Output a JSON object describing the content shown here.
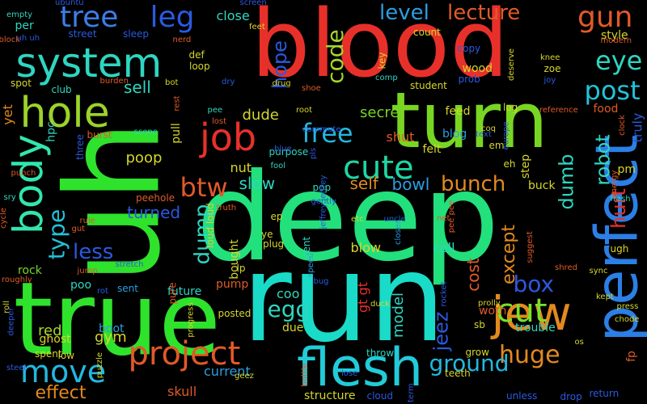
{
  "background": "#000000",
  "words": [
    {
      "text": "blood",
      "color": "#e8302a",
      "rotated": false
    },
    {
      "text": "deep",
      "color": "#22e07c",
      "rotated": false
    },
    {
      "text": "run",
      "color": "#19dbc8",
      "rotated": false
    },
    {
      "text": "uh",
      "color": "#2fe22c",
      "rotated": true
    },
    {
      "text": "true",
      "color": "#2fe22c",
      "rotated": false
    },
    {
      "text": "turn",
      "color": "#78d623",
      "rotated": false
    },
    {
      "text": "flesh",
      "color": "#22cbd8",
      "rotated": false
    },
    {
      "text": "perfect",
      "color": "#2b7fe6",
      "rotated": true
    },
    {
      "text": "system",
      "color": "#2ed6c0",
      "rotated": false
    },
    {
      "text": "hole",
      "color": "#9bd32b",
      "rotated": false
    },
    {
      "text": "body",
      "color": "#32e6ad",
      "rotated": true
    },
    {
      "text": "jew",
      "color": "#e3891f",
      "rotated": false
    },
    {
      "text": "project",
      "color": "#e05a28",
      "rotated": false
    },
    {
      "text": "tree",
      "color": "#3a7ee8",
      "rotated": false
    },
    {
      "text": "job",
      "color": "#e8302a",
      "rotated": false
    },
    {
      "text": "cute",
      "color": "#1fd6a5",
      "rotated": false
    },
    {
      "text": "cut",
      "color": "#78e02a",
      "rotated": false
    },
    {
      "text": "free",
      "color": "#22b8e0",
      "rotated": false
    },
    {
      "text": "leg",
      "color": "#2b59e0",
      "rotated": false
    },
    {
      "text": "gun",
      "color": "#e05a28",
      "rotated": false
    },
    {
      "text": "eye",
      "color": "#2ed6c0",
      "rotated": false
    },
    {
      "text": "post",
      "color": "#22c3d8",
      "rotated": false
    },
    {
      "text": "code",
      "color": "#a5d62b",
      "rotated": true
    },
    {
      "text": "lecture",
      "color": "#e05a28",
      "rotated": false
    },
    {
      "text": "level",
      "color": "#2b9ee0",
      "rotated": false
    },
    {
      "text": "move",
      "color": "#22b8e0",
      "rotated": false
    },
    {
      "text": "huge",
      "color": "#e3891f",
      "rotated": false
    },
    {
      "text": "btw",
      "color": "#e05a28",
      "rotated": false
    },
    {
      "text": "type",
      "color": "#22c3d8",
      "rotated": true
    },
    {
      "text": "ground",
      "color": "#22b8e0",
      "rotated": false
    },
    {
      "text": "box",
      "color": "#2b59e0",
      "rotated": false
    },
    {
      "text": "egg",
      "color": "#2ed6c0",
      "rotated": false
    },
    {
      "text": "bunch",
      "color": "#e3891f",
      "rotated": false
    },
    {
      "text": "jeez",
      "color": "#2b59e0",
      "rotated": true
    },
    {
      "text": "dumb",
      "color": "#2ed6c0",
      "rotated": true
    },
    {
      "text": "robot",
      "color": "#2ed6c0",
      "rotated": true
    },
    {
      "text": "hurt",
      "color": "#e8302a",
      "rotated": true
    },
    {
      "text": "hope",
      "color": "#2b59e0",
      "rotated": true
    },
    {
      "text": "less",
      "color": "#2b59e0",
      "rotated": false
    },
    {
      "text": "dump",
      "color": "#2ed6c0",
      "rotated": true
    },
    {
      "text": "effect",
      "color": "#e3891f",
      "rotated": false
    },
    {
      "text": "skull",
      "color": "#e05a28",
      "rotated": false
    },
    {
      "text": "turned",
      "color": "#2b59e0",
      "rotated": false
    },
    {
      "text": "secret",
      "color": "#78d623",
      "rotated": false
    },
    {
      "text": "dude",
      "color": "#d6d62b",
      "rotated": false
    },
    {
      "text": "slow",
      "color": "#2ed6c0",
      "rotated": false
    },
    {
      "text": "self",
      "color": "#e3891f",
      "rotated": false
    },
    {
      "text": "bowl",
      "color": "#2b9ee0",
      "rotated": false
    },
    {
      "text": "gym",
      "color": "#d6d62b",
      "rotated": false
    },
    {
      "text": "red",
      "color": "#a5d62b",
      "rotated": false
    },
    {
      "text": "nut",
      "color": "#d6d62b",
      "rotated": false
    },
    {
      "text": "coo",
      "color": "#2ed6c0",
      "rotated": false
    },
    {
      "text": "sell",
      "color": "#2ed6c0",
      "rotated": false
    },
    {
      "text": "poop",
      "color": "#d6d62b",
      "rotated": false
    },
    {
      "text": "except",
      "color": "#e3891f",
      "rotated": true
    },
    {
      "text": "cost",
      "color": "#e05a28",
      "rotated": true
    },
    {
      "text": "model",
      "color": "#2ed6c0",
      "rotated": true
    },
    {
      "text": "blow",
      "color": "#d6d62b",
      "rotated": false
    },
    {
      "text": "cell",
      "color": "#2ed6c0",
      "rotated": false
    },
    {
      "text": "close",
      "color": "#2ed6c0",
      "rotated": false
    },
    {
      "text": "per",
      "color": "#2ed6c0",
      "rotated": false
    },
    {
      "text": "empty",
      "color": "#2ed6c0",
      "rotated": false
    },
    {
      "text": "street",
      "color": "#2b59e0",
      "rotated": false
    },
    {
      "text": "block",
      "color": "#e05a28",
      "rotated": false
    },
    {
      "text": "sleep",
      "color": "#2b59e0",
      "rotated": false
    },
    {
      "text": "club",
      "color": "#2ed6c0",
      "rotated": false
    },
    {
      "text": "spot",
      "color": "#d6d62b",
      "rotated": false
    },
    {
      "text": "burden",
      "color": "#e05a28",
      "rotated": false
    },
    {
      "text": "yet",
      "color": "#e3891f",
      "rotated": true
    },
    {
      "text": "hpc",
      "color": "#2ed6c0",
      "rotated": true
    },
    {
      "text": "three",
      "color": "#2b59e0",
      "rotated": true
    },
    {
      "text": "punch",
      "color": "#e05a28",
      "rotated": false
    },
    {
      "text": "sry",
      "color": "#2ed6c0",
      "rotated": false
    },
    {
      "text": "rock",
      "color": "#78d623",
      "rotated": false
    },
    {
      "text": "poo",
      "color": "#2ed6c0",
      "rotated": false
    },
    {
      "text": "sent",
      "color": "#2b9ee0",
      "rotated": false
    },
    {
      "text": "future",
      "color": "#2ed6c0",
      "rotated": false
    },
    {
      "text": "pump",
      "color": "#e05a28",
      "rotated": false
    },
    {
      "text": "posted",
      "color": "#d6d62b",
      "rotated": false
    },
    {
      "text": "current",
      "color": "#2b9ee0",
      "rotated": false
    },
    {
      "text": "structure",
      "color": "#d6d62b",
      "rotated": false
    },
    {
      "text": "cloud",
      "color": "#2b59e0",
      "rotated": false
    },
    {
      "text": "unless",
      "color": "#2b59e0",
      "rotated": false
    },
    {
      "text": "return",
      "color": "#2b59e0",
      "rotated": false
    },
    {
      "text": "drop",
      "color": "#2b59e0",
      "rotated": false
    },
    {
      "text": "teeth",
      "color": "#d6d62b",
      "rotated": false
    },
    {
      "text": "grow",
      "color": "#d6d62b",
      "rotated": false
    },
    {
      "text": "trouble",
      "color": "#2ed6c0",
      "rotated": false
    },
    {
      "text": "woth",
      "color": "#e05a28",
      "rotated": false
    },
    {
      "text": "throw",
      "color": "#2ed6c0",
      "rotated": false
    },
    {
      "text": "due",
      "color": "#d6d62b",
      "rotated": false
    },
    {
      "text": "speed",
      "color": "#2b9ee0",
      "rotated": true
    },
    {
      "text": "fool",
      "color": "#2ed6c0",
      "rotated": false
    },
    {
      "text": "pop",
      "color": "#2ed6c0",
      "rotated": false
    },
    {
      "text": "purpose",
      "color": "#2ed6c0",
      "rotated": false
    },
    {
      "text": "feed",
      "color": "#d6d62b",
      "rotated": false
    },
    {
      "text": "log",
      "color": "#d6d62b",
      "rotated": false
    },
    {
      "text": "shut",
      "color": "#e05a28",
      "rotated": false
    },
    {
      "text": "blog",
      "color": "#2b9ee0",
      "rotated": false
    },
    {
      "text": "felt",
      "color": "#d6d62b",
      "rotated": false
    },
    {
      "text": "step",
      "color": "#d6d62b",
      "rotated": true
    },
    {
      "text": "buck",
      "color": "#d6d62b",
      "rotated": false
    },
    {
      "text": "eh",
      "color": "#d6d62b",
      "rotated": false
    },
    {
      "text": "em",
      "color": "#d6d62b",
      "rotated": false
    },
    {
      "text": "coq",
      "color": "#d6d62b",
      "rotated": false
    },
    {
      "text": "food",
      "color": "#e05a28",
      "rotated": false
    },
    {
      "text": "truly",
      "color": "#2b59e0",
      "rotated": true
    },
    {
      "text": "pm",
      "color": "#d6d62b",
      "rotated": false
    },
    {
      "text": "energy",
      "color": "#e05a28",
      "rotated": true
    },
    {
      "text": "style",
      "color": "#d6d62b",
      "rotated": false
    },
    {
      "text": "wood",
      "color": "#d6d62b",
      "rotated": false
    },
    {
      "text": "zoe",
      "color": "#d6d62b",
      "rotated": false
    },
    {
      "text": "knee",
      "color": "#d6d62b",
      "rotated": false
    },
    {
      "text": "copy",
      "color": "#2b59e0",
      "rotated": false
    },
    {
      "text": "prob",
      "color": "#2b59e0",
      "rotated": false
    },
    {
      "text": "joy",
      "color": "#2b59e0",
      "rotated": false
    },
    {
      "text": "key",
      "color": "#d6d62b",
      "rotated": true
    },
    {
      "text": "comp",
      "color": "#2ed6c0",
      "rotated": false
    },
    {
      "text": "count",
      "color": "#d6d62b",
      "rotated": false
    },
    {
      "text": "student",
      "color": "#d6d62b",
      "rotated": false
    },
    {
      "text": "def",
      "color": "#d6d62b",
      "rotated": false
    },
    {
      "text": "loop",
      "color": "#d6d62b",
      "rotated": false
    },
    {
      "text": "pee",
      "color": "#2ed6c0",
      "rotated": false
    },
    {
      "text": "lost",
      "color": "#e05a28",
      "rotated": false
    },
    {
      "text": "root",
      "color": "#d6d62b",
      "rotated": false
    },
    {
      "text": "scene",
      "color": "#2ed6c0",
      "rotated": false
    },
    {
      "text": "burst",
      "color": "#e05a28",
      "rotated": false
    },
    {
      "text": "pull",
      "color": "#d6d62b",
      "rotated": true
    },
    {
      "text": "peehole",
      "color": "#e05a28",
      "rotated": false
    },
    {
      "text": "rule",
      "color": "#e05a28",
      "rotated": false
    },
    {
      "text": "gut",
      "color": "#e05a28",
      "rotated": false
    },
    {
      "text": "pure",
      "color": "#e05a28",
      "rotated": true
    },
    {
      "text": "bought",
      "color": "#d6d62b",
      "rotated": true
    },
    {
      "text": "truth",
      "color": "#e05a28",
      "rotated": false
    },
    {
      "text": "ep",
      "color": "#d6d62b",
      "rotated": false
    },
    {
      "text": "ye",
      "color": "#d6d62b",
      "rotated": false
    },
    {
      "text": "plug",
      "color": "#d6d62b",
      "rotated": false
    },
    {
      "text": "lp",
      "color": "#d6d62b",
      "rotated": false
    },
    {
      "text": "loud loud",
      "color": "#d6d62b",
      "rotated": true
    },
    {
      "text": "gt gt",
      "color": "#e8302a",
      "rotated": true
    },
    {
      "text": "cent",
      "color": "#2ed6c0",
      "rotated": true
    },
    {
      "text": "closer",
      "color": "#2b9ee0",
      "rotated": true
    },
    {
      "text": "boot",
      "color": "#2b9ee0",
      "rotated": false
    },
    {
      "text": "ghost",
      "color": "#d6d62b",
      "rotated": false
    },
    {
      "text": "spent",
      "color": "#d6d62b",
      "rotated": false
    },
    {
      "text": "low",
      "color": "#d6d62b",
      "rotated": false
    },
    {
      "text": "deeper",
      "color": "#2b59e0",
      "rotated": true
    },
    {
      "text": "steel",
      "color": "#2b59e0",
      "rotated": false
    },
    {
      "text": "puzzle",
      "color": "#d6d62b",
      "rotated": true
    },
    {
      "text": "pee pee",
      "color": "#e05a28",
      "rotated": true
    },
    {
      "text": "suggest",
      "color": "#e05a28",
      "rotated": true
    },
    {
      "text": "ugh",
      "color": "#d6d62b",
      "rotated": false
    },
    {
      "text": "kept",
      "color": "#d6d62b",
      "rotated": false
    },
    {
      "text": "sb",
      "color": "#d6d62b",
      "rotated": false
    },
    {
      "text": "chode",
      "color": "#d6d62b",
      "rotated": false
    },
    {
      "text": "fp",
      "color": "#e05a28",
      "rotated": true
    },
    {
      "text": "os",
      "color": "#d6d62b",
      "rotated": false
    },
    {
      "text": "europe",
      "color": "#2b59e0",
      "rotated": true
    },
    {
      "text": "deserve",
      "color": "#d6d62b",
      "rotated": true
    },
    {
      "text": "reference",
      "color": "#e05a28",
      "rotated": false
    },
    {
      "text": "shred",
      "color": "#e05a28",
      "rotated": false
    },
    {
      "text": "sync",
      "color": "#d6d62b",
      "rotated": false
    },
    {
      "text": "ubuntu",
      "color": "#2b59e0",
      "rotated": false
    },
    {
      "text": "screen",
      "color": "#2b59e0",
      "rotated": false
    },
    {
      "text": "feet",
      "color": "#d6d62b",
      "rotated": false
    },
    {
      "text": "nerd",
      "color": "#e05a28",
      "rotated": false
    },
    {
      "text": "modern",
      "color": "#e05a28",
      "rotated": false
    },
    {
      "text": "bot",
      "color": "#d6d62b",
      "rotated": false
    },
    {
      "text": "rest",
      "color": "#e05a28",
      "rotated": true
    },
    {
      "text": "dry",
      "color": "#2b59e0",
      "rotated": false
    },
    {
      "text": "shoe",
      "color": "#e05a28",
      "rotated": false
    },
    {
      "text": "drug",
      "color": "#d6d62b",
      "rotated": false
    },
    {
      "text": "text",
      "color": "#2b59e0",
      "rotated": false
    },
    {
      "text": "clock",
      "color": "#e05a28",
      "rotated": true
    },
    {
      "text": "uh uh",
      "color": "#2b59e0",
      "rotated": false
    },
    {
      "text": "roll",
      "color": "#d6d62b",
      "rotated": true
    },
    {
      "text": "cycle",
      "color": "#e05a28",
      "rotated": true
    },
    {
      "text": "roughly",
      "color": "#e05a28",
      "rotated": false
    },
    {
      "text": "jump",
      "color": "#e05a28",
      "rotated": false
    },
    {
      "text": "rot",
      "color": "#2b59e0",
      "rotated": false
    },
    {
      "text": "stretch",
      "color": "#2b59e0",
      "rotated": false
    },
    {
      "text": "progress",
      "color": "#d6d62b",
      "rotated": true
    },
    {
      "text": "bug",
      "color": "#2b59e0",
      "rotated": false
    },
    {
      "text": "pls",
      "color": "#2b59e0",
      "rotated": true
    },
    {
      "text": "blue",
      "color": "#2b59e0",
      "rotated": false
    },
    {
      "text": "commute",
      "color": "#2b59e0",
      "rotated": false
    },
    {
      "text": "uncle",
      "color": "#2b59e0",
      "rotated": false
    },
    {
      "text": "etc",
      "color": "#d6d62b",
      "rotated": false
    },
    {
      "text": "net",
      "color": "#e05a28",
      "rotated": false
    },
    {
      "text": "duck",
      "color": "#d6d62b",
      "rotated": false
    },
    {
      "text": "prolly",
      "color": "#d6d62b",
      "rotated": false
    },
    {
      "text": "rocket",
      "color": "#2b59e0",
      "rotated": true
    },
    {
      "text": "geez",
      "color": "#d6d62b",
      "rotated": false
    },
    {
      "text": "bottle",
      "color": "#e05a28",
      "rotated": true
    },
    {
      "text": "lose",
      "color": "#2b59e0",
      "rotated": false
    },
    {
      "text": "term",
      "color": "#2b59e0",
      "rotated": true
    },
    {
      "text": "fresh",
      "color": "#2ed6c0",
      "rotated": false
    },
    {
      "text": "press",
      "color": "#d6d62b",
      "rotated": false
    },
    {
      "text": "gently",
      "color": "#2b59e0",
      "rotated": false
    },
    {
      "text": "jeffrey jeffrey",
      "color": "#2b59e0",
      "rotated": true
    }
  ]
}
